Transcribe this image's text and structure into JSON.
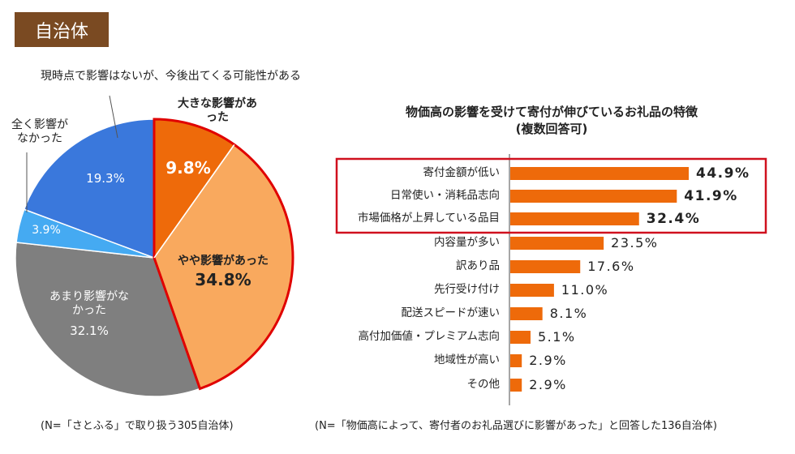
{
  "header": {
    "label": "自治体"
  },
  "chart_data": [
    {
      "type": "pie",
      "slices": [
        {
          "label": "大きな影響があった",
          "value": 9.8,
          "display": "9.8%",
          "color": "#ee6a0a"
        },
        {
          "label": "やや影響があった",
          "value": 34.8,
          "display": "34.8%",
          "color": "#f9a95e"
        },
        {
          "label": "あまり影響がなかった",
          "value": 32.1,
          "display": "32.1%",
          "color": "#7f7f7f"
        },
        {
          "label": "全く影響がなかった",
          "value": 3.9,
          "display": "3.9%",
          "color": "#45aaf2"
        },
        {
          "label": "現時点で影響はないが、今後出てくる可能性がある",
          "value": 19.3,
          "display": "19.3%",
          "color": "#3a78dc"
        }
      ],
      "highlight_color": "#e00000",
      "note": "(N=「さとふる」で取り扱う305自治体)"
    },
    {
      "type": "bar",
      "orientation": "horizontal",
      "title": "物価高の影響を受けて寄付が伸びているお礼品の特徴",
      "subtitle": "(複数回答可)",
      "categories": [
        "寄付金額が低い",
        "日常使い・消耗品志向",
        "市場価格が上昇している品目",
        "内容量が多い",
        "訳あり品",
        "先行受け付け",
        "配送スピードが速い",
        "高付加価値・プレミアム志向",
        "地域性が高い",
        "その他"
      ],
      "values": [
        44.9,
        41.9,
        32.4,
        23.5,
        17.6,
        11.0,
        8.1,
        5.1,
        2.9,
        2.9
      ],
      "labels": [
        "44.9%",
        "41.9%",
        "32.4%",
        "23.5%",
        "17.6%",
        "11.0%",
        "8.1%",
        "5.1%",
        "2.9%",
        "2.9%"
      ],
      "bar_color": "#ee6a0a",
      "highlighted_top": 3,
      "highlight_color": "#d0101e",
      "note": "(N=「物価高によって、寄付者のお礼品選びに影響があった」と回答した136自治体)"
    }
  ]
}
